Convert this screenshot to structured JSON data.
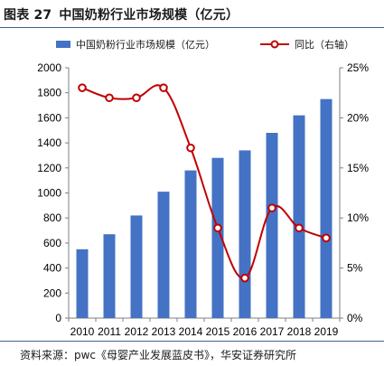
{
  "header": {
    "fig_label": "图表 27",
    "title": "中国奶粉行业市场规模（亿元）"
  },
  "footer": {
    "source": "资料来源：pwc《母婴产业发展蓝皮书》，华安证券研究所"
  },
  "colors": {
    "bar": "#4472c4",
    "line": "#c00000",
    "marker_fill": "#ffffff",
    "rule": "#3f5f95"
  },
  "chart_data": {
    "type": "bar",
    "categories": [
      "2010",
      "2011",
      "2012",
      "2013",
      "2014",
      "2015",
      "2016",
      "2017",
      "2018",
      "2019"
    ],
    "series": [
      {
        "name": "中国奶粉行业市场规模（亿元）",
        "type": "bar",
        "axis": "left",
        "values": [
          550,
          670,
          820,
          1010,
          1180,
          1280,
          1340,
          1480,
          1620,
          1750
        ]
      },
      {
        "name": "同比（右轴）",
        "type": "line",
        "axis": "right",
        "values": [
          23,
          22,
          22,
          23,
          17,
          9,
          4,
          11,
          9,
          8
        ]
      }
    ],
    "ylim": [
      0,
      2000
    ],
    "yticks": [
      "0",
      "200",
      "400",
      "600",
      "800",
      "1000",
      "1200",
      "1400",
      "1600",
      "1800",
      "2000"
    ],
    "y2lim": [
      0,
      25
    ],
    "y2ticks": [
      "0%",
      "5%",
      "10%",
      "15%",
      "20%",
      "25%"
    ],
    "legend_position": "top",
    "grid": false
  }
}
